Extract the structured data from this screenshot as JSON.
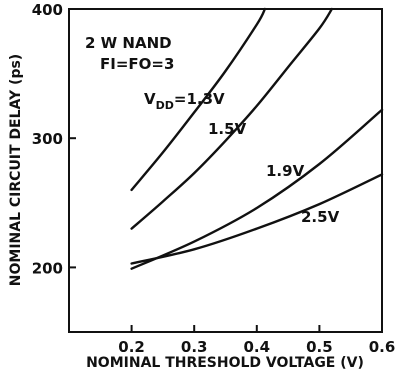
{
  "chart_data": {
    "type": "line",
    "xlabel": "NOMINAL THRESHOLD VOLTAGE (V)",
    "ylabel": "NOMINAL CIRCUIT DELAY (ps)",
    "xlim": [
      0.1,
      0.6
    ],
    "ylim": [
      150,
      400
    ],
    "x_ticks": [
      0.2,
      0.3,
      0.4,
      0.5,
      0.6
    ],
    "y_ticks": [
      200,
      300,
      400
    ],
    "x_tick_labels": [
      "0.2",
      "0.3",
      "0.4",
      "0.5",
      "0.6"
    ],
    "y_tick_labels": [
      "200",
      "300",
      "400"
    ],
    "grid": false,
    "annotations": [
      "2 W NAND",
      "FI=FO=3"
    ],
    "series": [
      {
        "label_prefix": "V",
        "label_sub": "DD",
        "label_suffix": "=1.3V",
        "x": [
          0.2,
          0.25,
          0.3,
          0.35,
          0.4,
          0.413
        ],
        "y": [
          260,
          289,
          320,
          352,
          388,
          400
        ]
      },
      {
        "label": "1.5V",
        "x": [
          0.2,
          0.25,
          0.3,
          0.35,
          0.4,
          0.45,
          0.5,
          0.52
        ],
        "y": [
          230,
          251,
          273,
          298,
          325,
          355,
          385,
          400
        ]
      },
      {
        "label": "1.9V",
        "x": [
          0.2,
          0.3,
          0.4,
          0.5,
          0.6
        ],
        "y": [
          199,
          220,
          246,
          280,
          322
        ]
      },
      {
        "label": "2.5V",
        "x": [
          0.2,
          0.3,
          0.4,
          0.5,
          0.6
        ],
        "y": [
          203,
          214,
          230,
          249,
          272
        ]
      }
    ]
  }
}
